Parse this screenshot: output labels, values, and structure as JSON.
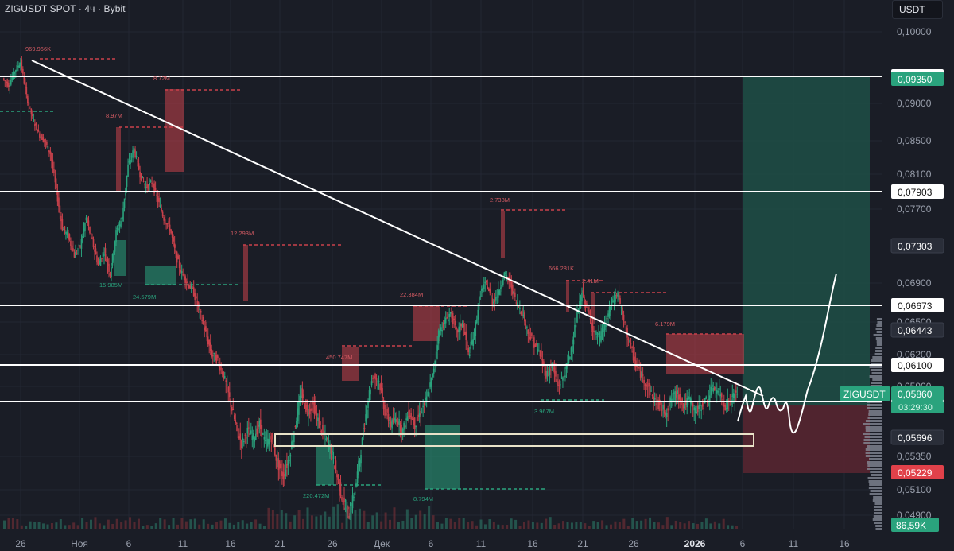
{
  "header": {
    "title": "ZIGUSDT SPOT · 4ч · Bybit",
    "currency": "USDT"
  },
  "chart_data": {
    "type": "candlestick",
    "symbol": "ZIGUSDT",
    "timeframe": "4ч",
    "exchange": "Bybit",
    "y_unit": "USDT",
    "ylim": [
      0.049,
      0.101
    ],
    "y_ticks": [
      "0,10000",
      "0,09000",
      "0,08500",
      "0,08100",
      "0,07700",
      "0,06900",
      "0,06500",
      "0,06200",
      "0,05900",
      "0,05350",
      "0,05100",
      "0,04900"
    ],
    "x_ticks": [
      "26",
      "Ноя",
      "6",
      "11",
      "16",
      "21",
      "26",
      "Дек",
      "6",
      "11",
      "16",
      "21",
      "26",
      "2026",
      "6",
      "11",
      "16"
    ],
    "price_path": [
      [
        0.0935,
        0.0925,
        0.0945,
        0.0958,
        0.091,
        0.088,
        0.086,
        0.085,
        0.0835,
        0.079,
        0.075,
        0.074,
        0.072,
        0.073,
        0.076,
        0.0735,
        0.071,
        0.0725,
        0.07,
        0.0745,
        0.076,
        0.082,
        0.084,
        0.081,
        0.0795,
        0.08,
        0.078,
        0.076,
        0.075,
        0.072,
        0.07,
        0.069,
        0.068,
        0.066,
        0.064,
        0.062,
        0.0615,
        0.06,
        0.058,
        0.056,
        0.0545,
        0.0555,
        0.055,
        0.056,
        0.0545,
        0.055,
        0.053,
        0.052,
        0.0535,
        0.056,
        0.0585,
        0.057,
        0.0575,
        0.056,
        0.055,
        0.054,
        0.052,
        0.05,
        0.049,
        0.051,
        0.054,
        0.0575,
        0.06,
        0.0595,
        0.057,
        0.056,
        0.0565,
        0.0555,
        0.057,
        0.056,
        0.057,
        0.058,
        0.06,
        0.064,
        0.065,
        0.066,
        0.064,
        0.065,
        0.062,
        0.064,
        0.068,
        0.069,
        0.067,
        0.068,
        0.07,
        0.069,
        0.067,
        0.066,
        0.064,
        0.063,
        0.062,
        0.06,
        0.061,
        0.059,
        0.06,
        0.062,
        0.065,
        0.068,
        0.066,
        0.064,
        0.0635,
        0.065,
        0.067,
        0.068,
        0.065,
        0.063,
        0.061,
        0.06,
        0.059,
        0.058,
        0.0575,
        0.057,
        0.058,
        0.0585,
        0.0575,
        0.058,
        0.057,
        0.0575,
        0.058,
        0.059,
        0.0585,
        0.0575,
        0.058,
        0.0586
      ]
    ],
    "horizontal_levels": [
      {
        "price": 0.0938,
        "label": "0,09380",
        "color": "#ffffff"
      },
      {
        "price": 0.07903,
        "label": "0,07903",
        "color": "#ffffff"
      },
      {
        "price": 0.06673,
        "label": "0,06673",
        "color": "#ffffff"
      },
      {
        "price": 0.061,
        "label": "0,06100",
        "color": "#ffffff"
      },
      {
        "price": 0.05784,
        "label": "0,05784",
        "color": "#ffffff"
      }
    ],
    "price_tags": [
      {
        "price": 0.0935,
        "label": "0,09350",
        "bg": "#2aa37d"
      },
      {
        "price": 0.07303,
        "label": "0,07303",
        "bg": "#2a2e39"
      },
      {
        "price": 0.06443,
        "label": "0,06443",
        "bg": "#2a2e39"
      },
      {
        "price": 0.0586,
        "label": "0,05860",
        "bg": "#2aa37d",
        "symbol": "ZIGUSDT",
        "countdown": "03:29:30"
      },
      {
        "price": 0.05696,
        "label": "0,05696",
        "bg": "#2a2e39"
      },
      {
        "price": 0.05229,
        "label": "0,05229",
        "bg": "#e0414a"
      }
    ],
    "volume_tag": "86,59K",
    "volume_annotations": [
      {
        "label": "969.966K",
        "x": 0.0,
        "y": 0.0
      },
      {
        "label": "8.72M"
      },
      {
        "label": "8.97M"
      },
      {
        "label": "12.293M"
      },
      {
        "label": "15.985M"
      },
      {
        "label": "24.579M"
      },
      {
        "label": "450.747M"
      },
      {
        "label": "22.384M"
      },
      {
        "label": "2.738M"
      },
      {
        "label": "666.281K"
      },
      {
        "label": "2.41M"
      },
      {
        "label": "6.179M"
      },
      {
        "label": "3.967M"
      },
      {
        "label": "220.472M"
      },
      {
        "label": "8.794M"
      }
    ],
    "trendline": {
      "from_price": 0.0963,
      "to_price": 0.0586
    },
    "long_position": {
      "entry": 0.0586,
      "target": 0.0935,
      "stop": 0.05229
    }
  }
}
